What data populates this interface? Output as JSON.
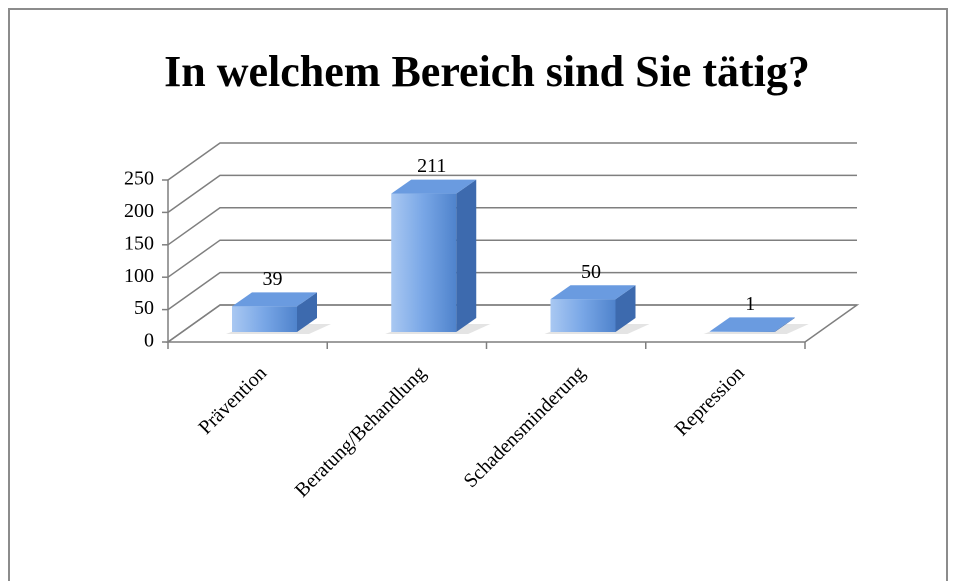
{
  "chart_data": {
    "type": "bar3d",
    "title": "In welchem Bereich sind Sie tätig?",
    "categories": [
      "Prävention",
      "Beratung/Behandlung",
      "Schadensminderung",
      "Repression"
    ],
    "values": [
      39,
      211,
      50,
      1
    ],
    "color": "#6a9be0",
    "ylim": [
      0,
      250
    ],
    "yticks": [
      0,
      50,
      100,
      150,
      200,
      250
    ],
    "grid": true
  }
}
